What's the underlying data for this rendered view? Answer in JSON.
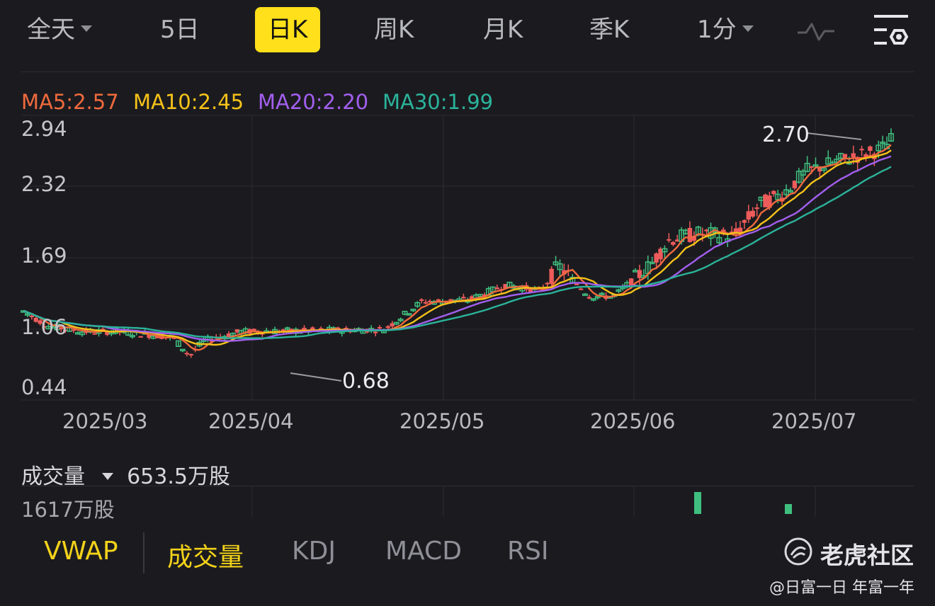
{
  "timeframe_tabs": [
    {
      "label": "全天",
      "dropdown": true
    },
    {
      "label": "5日",
      "dropdown": false
    },
    {
      "label": "日K",
      "dropdown": false,
      "active": true
    },
    {
      "label": "周K",
      "dropdown": false
    },
    {
      "label": "月K",
      "dropdown": false
    },
    {
      "label": "季K",
      "dropdown": false
    },
    {
      "label": "1分",
      "dropdown": true
    }
  ],
  "toolbar_icons": [
    "line-wave-icon",
    "chart-settings-icon"
  ],
  "ma_legend": [
    {
      "label": "MA5:2.57",
      "color": "#f06a3d"
    },
    {
      "label": "MA10:2.45",
      "color": "#f5c219"
    },
    {
      "label": "MA20:2.20",
      "color": "#a35ff0"
    },
    {
      "label": "MA30:1.99",
      "color": "#2bb39b"
    }
  ],
  "chart_data": {
    "type": "candlestick",
    "y_ticks": [
      "2.94",
      "2.32",
      "1.69",
      "1.06",
      "0.44"
    ],
    "x_ticks": [
      "2025/03",
      "2025/04",
      "2025/05",
      "2025/06",
      "2025/07"
    ],
    "ylim": [
      0.44,
      2.94
    ],
    "annotations": {
      "high": "2.70",
      "low": "0.68"
    },
    "up_color": "#3fbf7f",
    "down_color": "#ee5b5b"
  },
  "volume_panel": {
    "title": "成交量",
    "value": "653.5万股",
    "scale_label": "1617万股"
  },
  "indicator_tabs": [
    {
      "label": "VWAP",
      "active": true
    },
    {
      "label": "成交量",
      "active": true
    },
    {
      "label": "KDJ",
      "active": false
    },
    {
      "label": "MACD",
      "active": false
    },
    {
      "label": "RSI",
      "active": false
    }
  ],
  "watermark": {
    "brand": "老虎社区",
    "user": "@日富一日 年富一年"
  }
}
